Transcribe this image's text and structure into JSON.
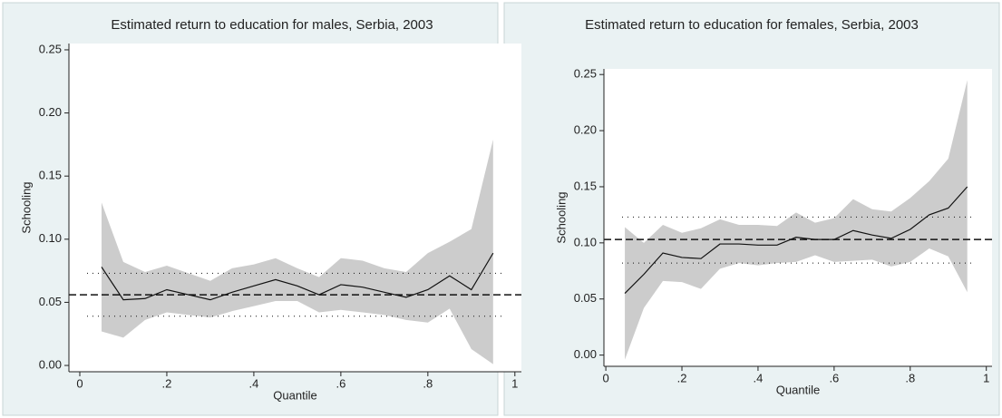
{
  "chart_data": [
    {
      "type": "line",
      "title": "Estimated return to education for males, Serbia, 2003",
      "x_label": "Quantile",
      "y_label": "Schooling",
      "x": [
        0.05,
        0.1,
        0.15,
        0.2,
        0.25,
        0.3,
        0.35,
        0.4,
        0.45,
        0.5,
        0.55,
        0.6,
        0.65,
        0.7,
        0.75,
        0.8,
        0.85,
        0.9,
        0.95
      ],
      "estimate": [
        0.078,
        0.052,
        0.053,
        0.06,
        0.056,
        0.052,
        0.058,
        0.063,
        0.068,
        0.063,
        0.056,
        0.064,
        0.062,
        0.058,
        0.054,
        0.06,
        0.071,
        0.06,
        0.089
      ],
      "ci_upper": [
        0.129,
        0.082,
        0.074,
        0.079,
        0.073,
        0.067,
        0.077,
        0.08,
        0.085,
        0.077,
        0.07,
        0.085,
        0.083,
        0.077,
        0.074,
        0.089,
        0.098,
        0.108,
        0.179
      ],
      "ci_lower": [
        0.027,
        0.022,
        0.036,
        0.042,
        0.04,
        0.038,
        0.043,
        0.047,
        0.051,
        0.051,
        0.042,
        0.044,
        0.042,
        0.04,
        0.036,
        0.034,
        0.045,
        0.013,
        0.001
      ],
      "ols": 0.056,
      "ols_ci": [
        0.039,
        0.073
      ],
      "line_color": "#111111",
      "band_color": "#cccccc",
      "xlim": [
        -0.025,
        1.015
      ],
      "ylim": [
        -0.005,
        0.255
      ],
      "xticks": [
        0,
        {
          "value": 0.2,
          "label": ".2"
        },
        {
          "value": 0.4,
          "label": ".4"
        },
        {
          "value": 0.6,
          "label": ".6"
        },
        {
          "value": 0.8,
          "label": ".8"
        },
        1
      ],
      "yticks": [
        {
          "value": 0,
          "label": "0.00"
        },
        {
          "value": 0.05,
          "label": "0.05"
        },
        {
          "value": 0.1,
          "label": "0.10"
        },
        {
          "value": 0.15,
          "label": "0.15"
        },
        {
          "value": 0.2,
          "label": "0.20"
        },
        {
          "value": 0.25,
          "label": "0.25"
        }
      ]
    },
    {
      "type": "line",
      "title": "Estimated return to education for females, Serbia, 2003",
      "x_label": "Quantile",
      "y_label": "Schooling",
      "x": [
        0.05,
        0.1,
        0.15,
        0.2,
        0.25,
        0.3,
        0.35,
        0.4,
        0.45,
        0.5,
        0.55,
        0.6,
        0.65,
        0.7,
        0.75,
        0.8,
        0.85,
        0.9,
        0.95
      ],
      "estimate": [
        0.055,
        0.072,
        0.091,
        0.087,
        0.086,
        0.099,
        0.099,
        0.098,
        0.098,
        0.105,
        0.103,
        0.103,
        0.111,
        0.107,
        0.104,
        0.112,
        0.125,
        0.131,
        0.15
      ],
      "ci_upper": [
        0.114,
        0.1,
        0.116,
        0.109,
        0.113,
        0.121,
        0.116,
        0.116,
        0.115,
        0.127,
        0.118,
        0.122,
        0.139,
        0.13,
        0.128,
        0.14,
        0.155,
        0.175,
        0.245
      ],
      "ci_lower": [
        -0.004,
        0.042,
        0.066,
        0.065,
        0.059,
        0.077,
        0.082,
        0.08,
        0.082,
        0.083,
        0.089,
        0.083,
        0.084,
        0.085,
        0.079,
        0.083,
        0.095,
        0.088,
        0.056
      ],
      "ols": 0.103,
      "ols_ci": [
        0.082,
        0.123
      ],
      "line_color": "#111111",
      "band_color": "#cccccc",
      "xlim": [
        -0.005,
        1.015
      ],
      "ylim": [
        -0.01,
        0.255
      ],
      "xticks": [
        0,
        {
          "value": 0.2,
          "label": ".2"
        },
        {
          "value": 0.4,
          "label": ".4"
        },
        {
          "value": 0.6,
          "label": ".6"
        },
        {
          "value": 0.8,
          "label": ".8"
        },
        1
      ],
      "yticks": [
        {
          "value": 0,
          "label": "0.00"
        },
        {
          "value": 0.05,
          "label": "0.05"
        },
        {
          "value": 0.1,
          "label": "0.10"
        },
        {
          "value": 0.15,
          "label": "0.15"
        },
        {
          "value": 0.2,
          "label": "0.20"
        },
        {
          "value": 0.25,
          "label": "0.25"
        }
      ]
    }
  ]
}
